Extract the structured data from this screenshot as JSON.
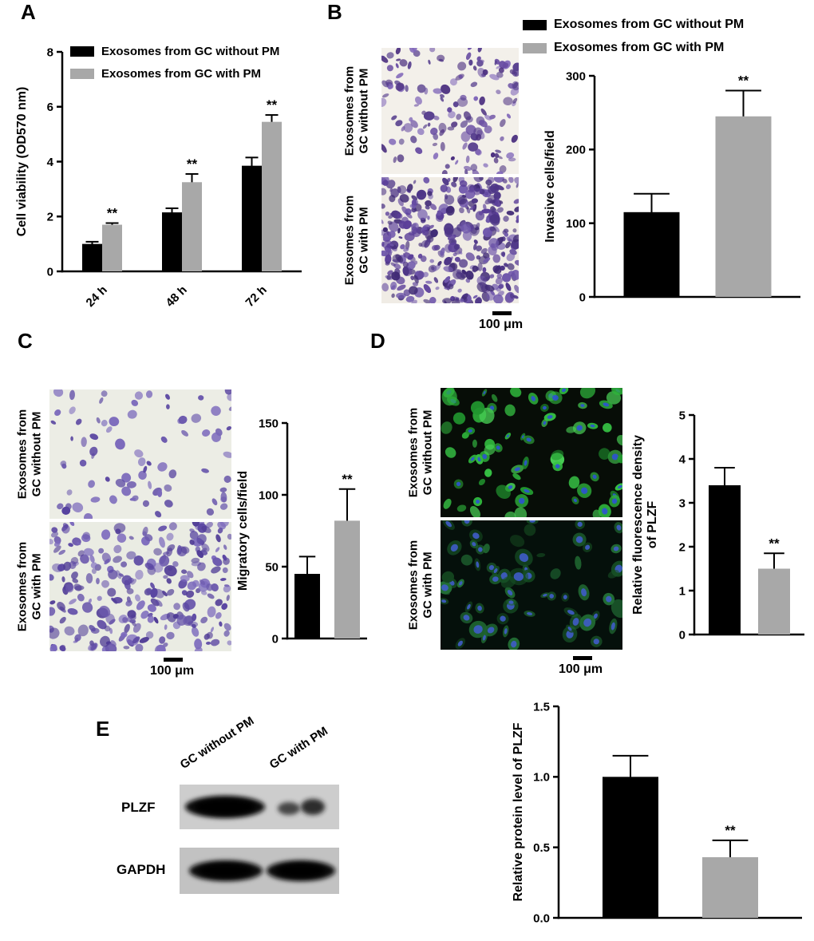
{
  "panels": {
    "A": {
      "label": "A",
      "legend": [
        {
          "label": "Exosomes from GC without PM",
          "color": "#000000"
        },
        {
          "label": "Exosomes from GC with PM",
          "color": "#a8a8a8"
        }
      ]
    },
    "B": {
      "label": "B",
      "legend": [
        {
          "label": "Exosomes from GC without PM",
          "color": "#000000"
        },
        {
          "label": "Exosomes from GC with PM",
          "color": "#a8a8a8"
        }
      ],
      "images": [
        {
          "label_lines": [
            "Exosomes from",
            "GC without PM"
          ]
        },
        {
          "label_lines": [
            "Exosomes from",
            "GC with PM"
          ]
        }
      ],
      "scale_bar_label": "100 μm"
    },
    "C": {
      "label": "C",
      "images": [
        {
          "label_lines": [
            "Exosomes from",
            "GC without PM"
          ]
        },
        {
          "label_lines": [
            "Exosomes from",
            "GC with PM"
          ]
        }
      ],
      "scale_bar_label": "100 μm"
    },
    "D": {
      "label": "D",
      "images": [
        {
          "label_lines": [
            "Exosomes from",
            "GC without PM"
          ]
        },
        {
          "label_lines": [
            "Exosomes from",
            "GC with PM"
          ]
        }
      ],
      "scale_bar_label": "100 μm"
    },
    "E": {
      "label": "E",
      "blot": {
        "lane_labels": [
          "GC without PM",
          "GC with PM"
        ],
        "band_labels": [
          "PLZF",
          "GAPDH"
        ]
      }
    }
  },
  "chart_data": [
    {
      "id": "A",
      "type": "bar",
      "title": "",
      "ylabel": "Cell viability (OD570 nm)",
      "ylabel_lines": [
        "Cell viability (OD570 nm)"
      ],
      "ylim": [
        0,
        8
      ],
      "yticks": [
        "0",
        "2",
        "4",
        "6",
        "8"
      ],
      "categories": [
        "24 h",
        "48 h",
        "72 h"
      ],
      "series": [
        {
          "name": "Exosomes from GC without PM",
          "color": "#000000",
          "values": [
            1.0,
            2.15,
            3.85
          ],
          "errors": [
            0.08,
            0.15,
            0.3
          ]
        },
        {
          "name": "Exosomes from GC with PM",
          "color": "#a8a8a8",
          "values": [
            1.7,
            3.25,
            5.45
          ],
          "errors": [
            0.06,
            0.3,
            0.25
          ]
        }
      ],
      "significance": [
        {
          "cat": 0,
          "series": 1,
          "text": "**"
        },
        {
          "cat": 1,
          "series": 1,
          "text": "**"
        },
        {
          "cat": 2,
          "series": 1,
          "text": "**"
        }
      ],
      "legend_position": "top-left-inside",
      "grid": false
    },
    {
      "id": "B",
      "type": "bar",
      "ylabel": "Invasive cells/field",
      "ylabel_lines": [
        "Invasive cells/field"
      ],
      "ylim": [
        0,
        300
      ],
      "yticks": [
        "0",
        "100",
        "200",
        "300"
      ],
      "categories": [
        ""
      ],
      "series": [
        {
          "name": "Exosomes from GC without PM",
          "color": "#000000",
          "values": [
            115
          ],
          "errors": [
            25
          ]
        },
        {
          "name": "Exosomes from GC with PM",
          "color": "#a8a8a8",
          "values": [
            245
          ],
          "errors": [
            35
          ]
        }
      ],
      "significance": [
        {
          "cat": 0,
          "series": 1,
          "text": "**"
        }
      ],
      "grid": false
    },
    {
      "id": "C",
      "type": "bar",
      "ylabel": "Migratory cells/field",
      "ylabel_lines": [
        "Migratory cells/field"
      ],
      "ylim": [
        0,
        150
      ],
      "yticks": [
        "0",
        "50",
        "100",
        "150"
      ],
      "categories": [
        ""
      ],
      "series": [
        {
          "name": "Exosomes from GC without PM",
          "color": "#000000",
          "values": [
            45
          ],
          "errors": [
            12
          ]
        },
        {
          "name": "Exosomes from GC with PM",
          "color": "#a8a8a8",
          "values": [
            82
          ],
          "errors": [
            22
          ]
        }
      ],
      "significance": [
        {
          "cat": 0,
          "series": 1,
          "text": "**"
        }
      ],
      "grid": false
    },
    {
      "id": "D",
      "type": "bar",
      "ylabel": "Relative fluorescence density of PLZF",
      "ylabel_lines": [
        "Relative fluorescence density",
        "of PLZF"
      ],
      "ylim": [
        0,
        5
      ],
      "yticks": [
        "0",
        "1",
        "2",
        "3",
        "4",
        "5"
      ],
      "categories": [
        ""
      ],
      "series": [
        {
          "name": "Exosomes from GC without PM",
          "color": "#000000",
          "values": [
            3.4
          ],
          "errors": [
            0.4
          ]
        },
        {
          "name": "Exosomes from GC with PM",
          "color": "#a8a8a8",
          "values": [
            1.5
          ],
          "errors": [
            0.35
          ]
        }
      ],
      "significance": [
        {
          "cat": 0,
          "series": 1,
          "text": "**"
        }
      ],
      "grid": false
    },
    {
      "id": "E",
      "type": "bar",
      "ylabel": "Relative protein level of PLZF",
      "ylabel_lines": [
        "Relative protein level of PLZF"
      ],
      "ylim": [
        0,
        1.5
      ],
      "yticks": [
        "0.0",
        "0.5",
        "1.0",
        "1.5"
      ],
      "categories": [
        ""
      ],
      "series": [
        {
          "name": "GC without PM",
          "color": "#000000",
          "values": [
            1.0
          ],
          "errors": [
            0.15
          ]
        },
        {
          "name": "GC with PM",
          "color": "#a8a8a8",
          "values": [
            0.43
          ],
          "errors": [
            0.12
          ]
        }
      ],
      "significance": [
        {
          "cat": 0,
          "series": 1,
          "text": "**"
        }
      ],
      "grid": false
    }
  ]
}
